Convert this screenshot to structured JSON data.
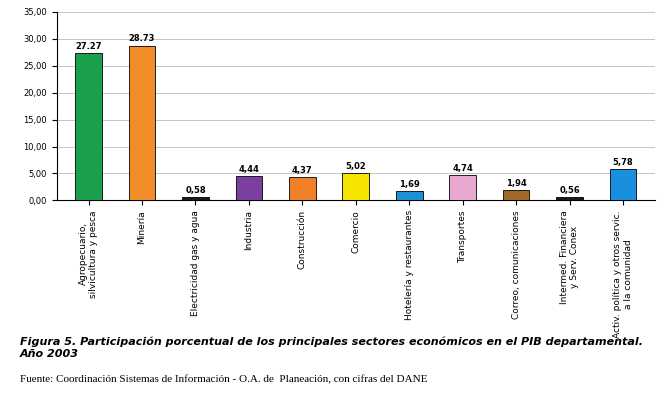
{
  "chart_data": {
    "type": "bar",
    "title": "Figura 5. Participación porcentual de los principales sectores económicos en el PIB departamental. Año 2003",
    "source": "Fuente: Coordinación Sistemas de Información - O.A. de  Planeación, con cifras del DANE",
    "categories": [
      "Agropecuario,\nsilvicultura y pesca",
      "Minería",
      "Electricidad gas y agua",
      "Industria",
      "Construcción",
      "Comercio",
      "Hotelería y restaurantes",
      "Transportes",
      "Correo, comunicaciones",
      "Intermed. Financiera\ny Serv. Conex",
      "Activ. política y otros servic.\na la comunidad"
    ],
    "values": [
      27.27,
      28.73,
      0.58,
      4.44,
      4.37,
      5.02,
      1.69,
      4.74,
      1.94,
      0.56,
      5.78
    ],
    "value_labels": [
      "27.27",
      "28.73",
      "0,58",
      "4,44",
      "4,37",
      "5,02",
      "1,69",
      "4,74",
      "1,94",
      "0,56",
      "5,78"
    ],
    "colors": [
      "#1aa04c",
      "#f28c28",
      "#1a1a1a",
      "#7b3fa0",
      "#f07f28",
      "#f5e400",
      "#1f8fd6",
      "#e8a8d0",
      "#a0692a",
      "#1a1a1a",
      "#1a8fe0"
    ],
    "ylim": [
      0,
      35
    ],
    "yticks": [
      {
        "value": 0,
        "label": "0,00"
      },
      {
        "value": 5,
        "label": "5,00"
      },
      {
        "value": 10,
        "label": "10,00"
      },
      {
        "value": 15,
        "label": "15,00"
      },
      {
        "value": 20,
        "label": "20,00"
      },
      {
        "value": 25,
        "label": "25,00"
      },
      {
        "value": 30,
        "label": "30,00"
      },
      {
        "value": 35,
        "label": "35,00"
      }
    ],
    "grid": true,
    "data_labels": true
  }
}
